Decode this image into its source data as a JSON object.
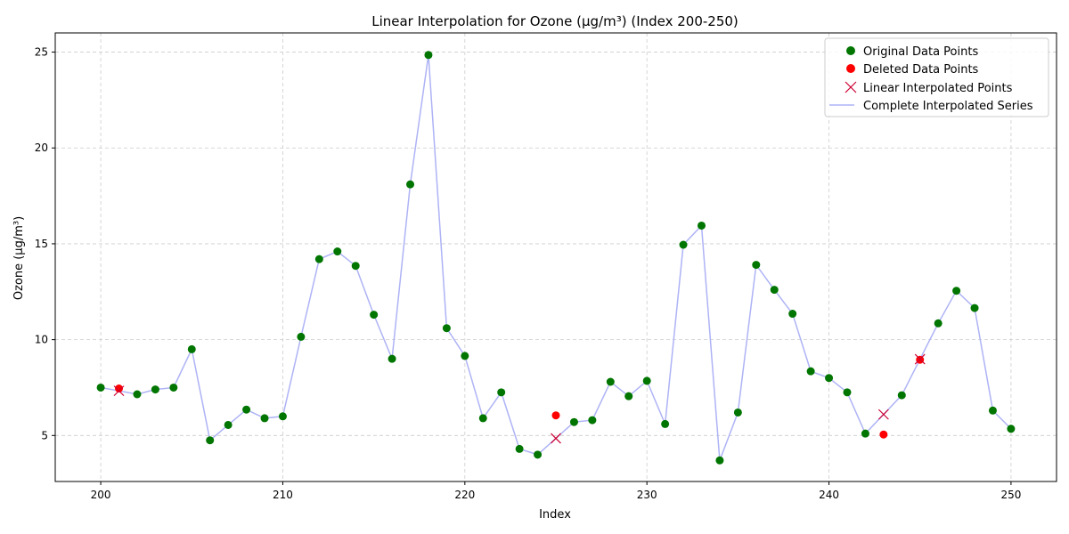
{
  "chart_data": {
    "type": "line",
    "title": "Linear Interpolation for Ozone (µg/m³) (Index 200-250)",
    "xlabel": "Index",
    "ylabel": "Ozone (µg/m³)",
    "xlim": [
      197.5,
      252.5
    ],
    "ylim": [
      2.6,
      26.0
    ],
    "xticks": [
      200,
      210,
      220,
      230,
      240,
      250
    ],
    "yticks": [
      5,
      10,
      15,
      20,
      25
    ],
    "grid": true,
    "legend_position": "top-right",
    "colors": {
      "original": "#007500",
      "deleted": "#ff0000",
      "interpolated_marker": "#cc0033",
      "line": "#aeb3f5",
      "grid": "#cccccc"
    },
    "legend": [
      {
        "key": "original",
        "label": "Original Data Points"
      },
      {
        "key": "deleted",
        "label": "Deleted Data Points"
      },
      {
        "key": "interpolated",
        "label": "Linear Interpolated Points"
      },
      {
        "key": "complete",
        "label": "Complete Interpolated Series"
      }
    ],
    "series": [
      {
        "name": "Original Data Points",
        "marker": "circle",
        "x": [
          200,
          202,
          203,
          204,
          205,
          206,
          207,
          208,
          209,
          210,
          211,
          212,
          213,
          214,
          215,
          216,
          217,
          218,
          219,
          220,
          221,
          222,
          223,
          224,
          226,
          227,
          228,
          229,
          230,
          231,
          232,
          233,
          234,
          235,
          236,
          237,
          238,
          239,
          240,
          241,
          242,
          244,
          246,
          247,
          248,
          249,
          250
        ],
        "y": [
          7.5,
          7.15,
          7.4,
          7.5,
          9.5,
          4.75,
          5.55,
          6.35,
          5.9,
          6.0,
          10.15,
          14.2,
          14.6,
          13.85,
          11.3,
          9.0,
          18.1,
          24.85,
          10.6,
          9.15,
          5.9,
          7.25,
          4.3,
          4.0,
          5.7,
          5.8,
          7.8,
          7.05,
          7.85,
          5.6,
          14.95,
          15.95,
          3.7,
          6.2,
          13.9,
          12.6,
          11.35,
          8.35,
          8.0,
          7.25,
          5.1,
          7.1,
          10.85,
          12.55,
          11.65,
          6.3,
          5.35
        ]
      },
      {
        "name": "Deleted Data Points",
        "marker": "circle",
        "x": [
          201,
          225,
          243,
          245
        ],
        "y": [
          7.45,
          6.05,
          5.05,
          8.95
        ]
      },
      {
        "name": "Linear Interpolated Points",
        "marker": "x",
        "x": [
          201,
          225,
          243,
          245
        ],
        "y": [
          7.33,
          4.85,
          6.1,
          8.98
        ]
      },
      {
        "name": "Complete Interpolated Series",
        "marker": "line",
        "x": [
          200,
          201,
          202,
          203,
          204,
          205,
          206,
          207,
          208,
          209,
          210,
          211,
          212,
          213,
          214,
          215,
          216,
          217,
          218,
          219,
          220,
          221,
          222,
          223,
          224,
          225,
          226,
          227,
          228,
          229,
          230,
          231,
          232,
          233,
          234,
          235,
          236,
          237,
          238,
          239,
          240,
          241,
          242,
          243,
          244,
          245,
          246,
          247,
          248,
          249,
          250
        ],
        "y": [
          7.5,
          7.33,
          7.15,
          7.4,
          7.5,
          9.5,
          4.75,
          5.55,
          6.35,
          5.9,
          6.0,
          10.15,
          14.2,
          14.6,
          13.85,
          11.3,
          9.0,
          18.1,
          24.85,
          10.6,
          9.15,
          5.9,
          7.25,
          4.3,
          4.0,
          4.85,
          5.7,
          5.8,
          7.8,
          7.05,
          7.85,
          5.6,
          14.95,
          15.95,
          3.7,
          6.2,
          13.9,
          12.6,
          11.35,
          8.35,
          8.0,
          7.25,
          5.1,
          6.1,
          7.1,
          8.98,
          10.85,
          12.55,
          11.65,
          6.3,
          5.35
        ]
      }
    ]
  }
}
